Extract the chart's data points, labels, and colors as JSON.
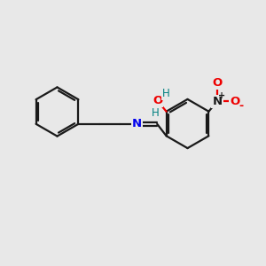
{
  "background_color": "#e8e8e8",
  "bond_color": "#1a1a1a",
  "N_color": "#0000ee",
  "O_color": "#ee0000",
  "OH_color": "#008080",
  "bond_width": 1.6,
  "figsize": [
    3.0,
    3.0
  ],
  "dpi": 100,
  "xlim": [
    0,
    10
  ],
  "ylim": [
    0,
    10
  ]
}
